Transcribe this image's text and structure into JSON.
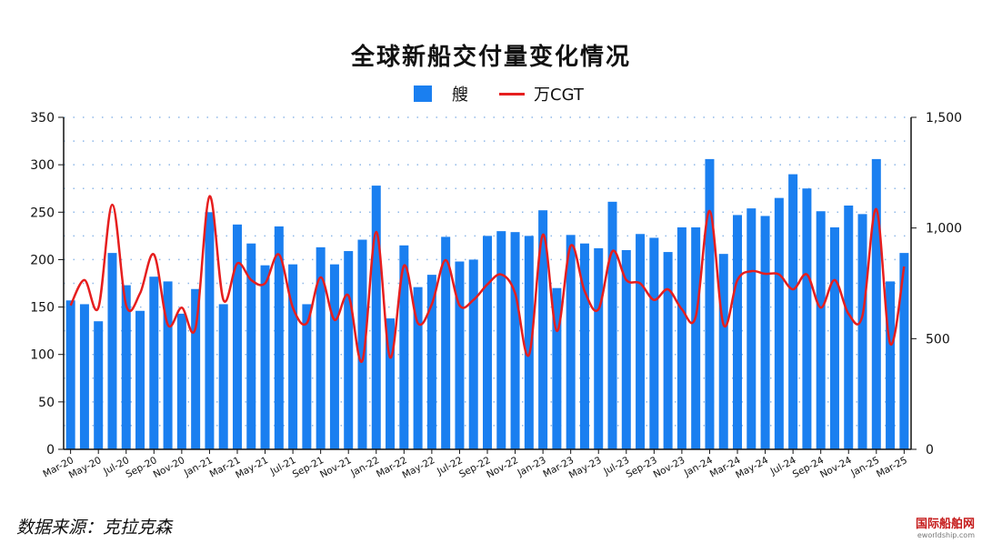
{
  "chart_data": {
    "type": "bar+line",
    "title": "全球新船交付量变化情况",
    "legend_position": "top",
    "grid": "dotted horizontal",
    "categories": [
      "Mar-20",
      "Apr-20",
      "May-20",
      "Jun-20",
      "Jul-20",
      "Aug-20",
      "Sep-20",
      "Oct-20",
      "Nov-20",
      "Dec-20",
      "Jan-21",
      "Feb-21",
      "Mar-21",
      "Apr-21",
      "May-21",
      "Jun-21",
      "Jul-21",
      "Aug-21",
      "Sep-21",
      "Oct-21",
      "Nov-21",
      "Dec-21",
      "Jan-22",
      "Feb-22",
      "Mar-22",
      "Apr-22",
      "May-22",
      "Jun-22",
      "Jul-22",
      "Aug-22",
      "Sep-22",
      "Oct-22",
      "Nov-22",
      "Dec-22",
      "Jan-23",
      "Feb-23",
      "Mar-23",
      "Apr-23",
      "May-23",
      "Jun-23",
      "Jul-23",
      "Aug-23",
      "Sep-23",
      "Oct-23",
      "Nov-23",
      "Dec-23",
      "Jan-24",
      "Feb-24",
      "Mar-24",
      "Apr-24",
      "May-24",
      "Jun-24",
      "Jul-24",
      "Aug-24",
      "Sep-24",
      "Oct-24",
      "Nov-24",
      "Dec-24",
      "Jan-25",
      "Feb-25",
      "Mar-25"
    ],
    "x_tick_labels": [
      "Mar-20",
      "May-20",
      "Jul-20",
      "Sep-20",
      "Nov-20",
      "Jan-21",
      "Mar-21",
      "May-21",
      "Jul-21",
      "Sep-21",
      "Nov-21",
      "Jan-22",
      "Mar-22",
      "May-22",
      "Jul-22",
      "Sep-22",
      "Nov-22",
      "Jan-23",
      "Mar-23",
      "May-23",
      "Jul-23",
      "Sep-23",
      "Nov-23",
      "Jan-24",
      "Mar-24",
      "May-24",
      "Jul-24",
      "Sep-24",
      "Nov-24",
      "Jan-25",
      "Mar-25"
    ],
    "y_left": {
      "range": [
        0,
        350
      ],
      "ticks": [
        "0",
        "50",
        "100",
        "150",
        "200",
        "250",
        "300",
        "350"
      ]
    },
    "y_right": {
      "range": [
        0,
        1500
      ],
      "ticks": [
        "0",
        "500",
        "1,000",
        "1,500"
      ]
    },
    "series": [
      {
        "name": "艘",
        "type": "bar",
        "axis": "left",
        "color": "#1a7ff0",
        "values": [
          157,
          153,
          135,
          207,
          173,
          146,
          182,
          177,
          143,
          169,
          250,
          153,
          237,
          217,
          194,
          235,
          195,
          153,
          213,
          195,
          209,
          221,
          278,
          138,
          215,
          171,
          184,
          224,
          198,
          200,
          225,
          230,
          229,
          225,
          252,
          170,
          226,
          217,
          212,
          261,
          210,
          227,
          223,
          208,
          234,
          234,
          306,
          206,
          247,
          254,
          246,
          265,
          290,
          275,
          251,
          234,
          257,
          248,
          306,
          177,
          207
        ]
      },
      {
        "name": "万CGT",
        "type": "line",
        "axis": "right",
        "color": "#e61e1e",
        "values": [
          650,
          765,
          640,
          1105,
          650,
          705,
          880,
          563,
          640,
          550,
          1143,
          675,
          840,
          765,
          750,
          880,
          640,
          570,
          777,
          585,
          695,
          400,
          982,
          415,
          830,
          570,
          655,
          855,
          650,
          675,
          745,
          790,
          705,
          427,
          970,
          535,
          920,
          715,
          633,
          895,
          765,
          750,
          675,
          723,
          633,
          600,
          1077,
          563,
          765,
          805,
          793,
          790,
          723,
          790,
          640,
          765,
          612,
          604,
          1085,
          477,
          826
        ]
      }
    ]
  },
  "footer": {
    "source": "数据来源：克拉克森"
  },
  "watermark": {
    "name": "国际船舶网",
    "url": "eworldship.com"
  }
}
